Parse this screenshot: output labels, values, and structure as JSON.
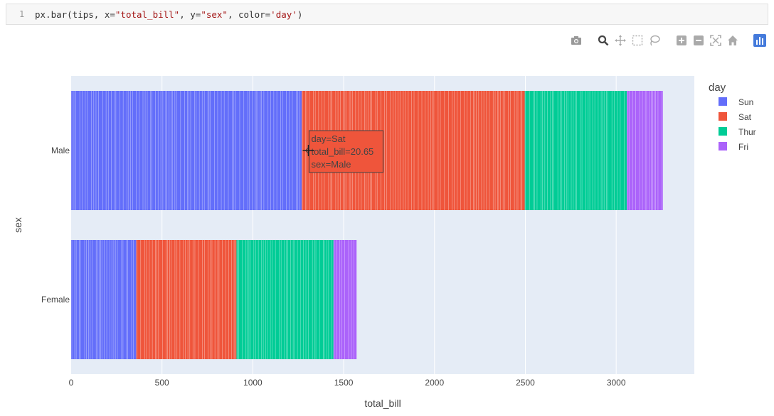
{
  "cell": {
    "line_number": "1",
    "code_tokens": [
      {
        "t": "px.bar(tips, x=",
        "c": "plain"
      },
      {
        "t": "\"total_bill\"",
        "c": "str"
      },
      {
        "t": ", y=",
        "c": "plain"
      },
      {
        "t": "\"sex\"",
        "c": "str"
      },
      {
        "t": ", color=",
        "c": "plain"
      },
      {
        "t": "'day'",
        "c": "str"
      },
      {
        "t": ")",
        "c": "plain"
      }
    ]
  },
  "modebar": {
    "buttons": [
      "camera-icon",
      "zoom-icon",
      "pan-icon",
      "box-select-icon",
      "lasso-icon",
      "zoom-in-icon",
      "zoom-out-icon",
      "autoscale-icon",
      "reset-axes-icon",
      "plotly-logo-icon"
    ]
  },
  "chart_data": {
    "type": "bar",
    "orientation": "horizontal",
    "barmode": "stack",
    "xlabel": "total_bill",
    "ylabel": "sex",
    "xlim": [
      0,
      3430
    ],
    "xticks": [
      0,
      500,
      1000,
      1500,
      2000,
      2500,
      3000
    ],
    "categories": [
      "Male",
      "Female"
    ],
    "legend_title": "day",
    "legend_position": "right",
    "grid": true,
    "series": [
      {
        "name": "Sun",
        "color": "#636efa",
        "values": [
          1269,
          358
        ]
      },
      {
        "name": "Sat",
        "color": "#ef553b",
        "values": [
          1228,
          552
        ]
      },
      {
        "name": "Thur",
        "color": "#00cc96",
        "values": [
          561,
          534
        ]
      },
      {
        "name": "Fri",
        "color": "#ab63fa",
        "values": [
          199,
          127
        ]
      }
    ],
    "hover": {
      "lines": [
        "day=Sat",
        "total_bill=20.65",
        "sex=Male"
      ],
      "category": "Male",
      "x_value": 1290
    }
  }
}
